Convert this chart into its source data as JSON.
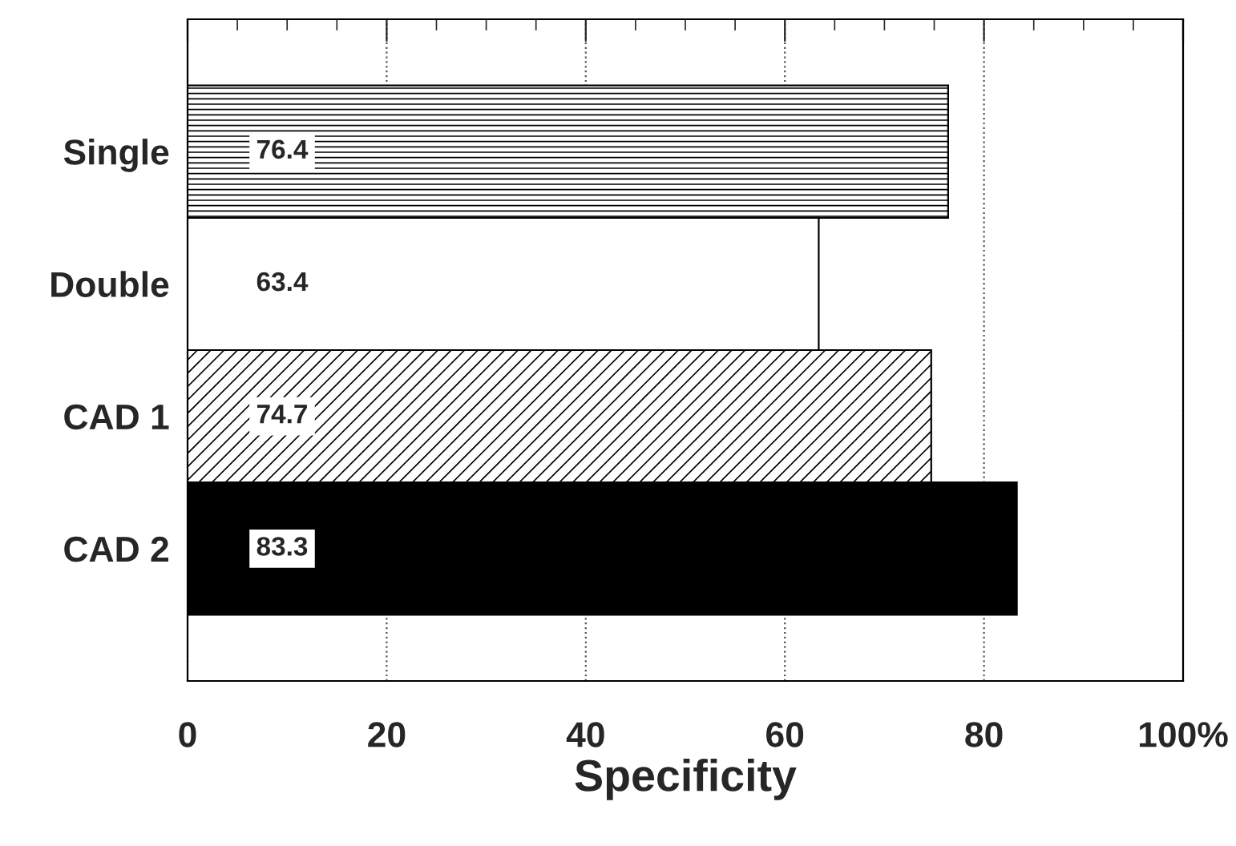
{
  "chart_data": {
    "type": "bar",
    "orientation": "horizontal",
    "xlabel": "Specificity",
    "categories": [
      "Single",
      "Double",
      "CAD 1",
      "CAD 2"
    ],
    "values": [
      76.4,
      63.4,
      74.7,
      83.3
    ],
    "colors": [
      "#ffffff",
      "#ffffff",
      "#ffffff",
      "#000000"
    ],
    "xlim": [
      0,
      100
    ],
    "xticks": [
      0,
      20,
      40,
      60,
      80,
      {
        "value": 100,
        "label": "100%"
      }
    ],
    "grid": "x",
    "data_labels": true
  }
}
